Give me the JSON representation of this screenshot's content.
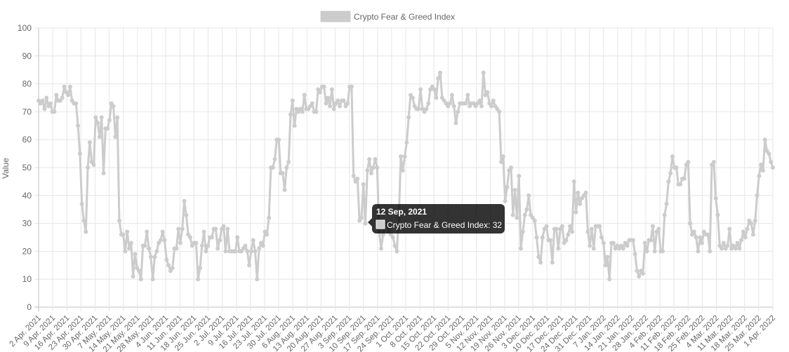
{
  "chart_data": {
    "type": "line",
    "legend": {
      "label": "Crypto Fear & Greed Index",
      "position": "top"
    },
    "ylabel": "Value",
    "ylim": [
      0,
      100
    ],
    "yticks": [
      0,
      10,
      20,
      30,
      40,
      50,
      60,
      70,
      80,
      90,
      100
    ],
    "grid": true,
    "series_color": "#cccccc",
    "xtick_labels": [
      "2 Apr. 2021",
      "9 Apr. 2021",
      "16 Apr. 2021",
      "23 Apr. 2021",
      "30 Apr. 2021",
      "7 May. 2021",
      "14 May. 2021",
      "21 May. 2021",
      "28 May. 2021",
      "4 Jun. 2021",
      "11 Jun. 2021",
      "18 Jun. 2021",
      "25 Jun. 2021",
      "2 Jul. 2021",
      "9 Jul. 2021",
      "16 Jul. 2021",
      "23 Jul. 2021",
      "30 Jul. 2021",
      "6 Aug. 2021",
      "13 Aug. 2021",
      "20 Aug. 2021",
      "27 Aug. 2021",
      "3 Sep. 2021",
      "10 Sep. 2021",
      "17 Sep. 2021",
      "24 Sep. 2021",
      "1 Oct. 2021",
      "8 Oct. 2021",
      "15 Oct. 2021",
      "22 Oct. 2021",
      "29 Oct. 2021",
      "5 Nov. 2021",
      "12 Nov. 2021",
      "19 Nov. 2021",
      "26 Nov. 2021",
      "3 Dec. 2021",
      "10 Dec. 2021",
      "17 Dec. 2021",
      "24 Dec. 2021",
      "31 Dec. 2021",
      "7 Jan. 2022",
      "14 Jan. 2022",
      "21 Jan. 2022",
      "28 Jan. 2022",
      "4 Feb. 2022",
      "11 Feb. 2022",
      "18 Feb. 2022",
      "25 Feb. 2022",
      "4 Mar. 2022",
      "11 Mar. 2022",
      "18 Mar. 2022",
      "25 Mar. 2022",
      "1 Apr. 2022"
    ],
    "series": [
      {
        "name": "Crypto Fear & Greed Index",
        "values": [
          74,
          73,
          74,
          71,
          75,
          72,
          73,
          70,
          70,
          76,
          74,
          74,
          75,
          79,
          77,
          76,
          79,
          74,
          73,
          73,
          65,
          55,
          37,
          31,
          27,
          50,
          59,
          52,
          51,
          68,
          66,
          61,
          68,
          48,
          64,
          64,
          67,
          73,
          72,
          61,
          68,
          31,
          26,
          26,
          20,
          27,
          21,
          23,
          11,
          19,
          14,
          13,
          10,
          22,
          22,
          27,
          21,
          18,
          10,
          18,
          20,
          23,
          24,
          27,
          24,
          17,
          15,
          13,
          14,
          21,
          21,
          28,
          23,
          28,
          38,
          33,
          26,
          25,
          22,
          23,
          23,
          10,
          14,
          22,
          27,
          20,
          22,
          25,
          25,
          28,
          28,
          21,
          24,
          28,
          29,
          20,
          28,
          20,
          20,
          20,
          20,
          25,
          20,
          20,
          21,
          22,
          20,
          15,
          20,
          24,
          20,
          10,
          21,
          23,
          22,
          27,
          26,
          32,
          50,
          50,
          53,
          60,
          60,
          48,
          48,
          42,
          50,
          52,
          69,
          74,
          65,
          71,
          70,
          71,
          70,
          76,
          71,
          71,
          72,
          73,
          70,
          70,
          78,
          77,
          79,
          79,
          73,
          75,
          72,
          78,
          71,
          73,
          74,
          72,
          74,
          74,
          72,
          73,
          79,
          79,
          47,
          45,
          46,
          31,
          32,
          44,
          30,
          49,
          53,
          48,
          50,
          53,
          50,
          27,
          21,
          26,
          30,
          30,
          27,
          26,
          25,
          22,
          20,
          32,
          54,
          49,
          54,
          59,
          68,
          76,
          75,
          72,
          71,
          71,
          78,
          71,
          70,
          71,
          73,
          78,
          79,
          78,
          75,
          82,
          84,
          75,
          74,
          73,
          72,
          73,
          76,
          72,
          66,
          70,
          73,
          73,
          73,
          73,
          76,
          72,
          73,
          73,
          72,
          73,
          74,
          72,
          84,
          76,
          77,
          73,
          72,
          74,
          72,
          71,
          70,
          52,
          54,
          38,
          43,
          49,
          50,
          33,
          42,
          32,
          47,
          21,
          27,
          33,
          35,
          40,
          33,
          32,
          31,
          25,
          18,
          16,
          25,
          28,
          29,
          24,
          24,
          16,
          28,
          28,
          21,
          28,
          29,
          23,
          24,
          26,
          29,
          27,
          45,
          34,
          41,
          37,
          39,
          40,
          41,
          27,
          22,
          28,
          21,
          29,
          29,
          29,
          25,
          23,
          15,
          18,
          10,
          23,
          23,
          21,
          22,
          21,
          22,
          21,
          23,
          22,
          24,
          24,
          24,
          19,
          13,
          11,
          13,
          12,
          23,
          20,
          24,
          24,
          29,
          20,
          27,
          28,
          20,
          20,
          33,
          37,
          45,
          48,
          54,
          50,
          50,
          44,
          44,
          46,
          46,
          51,
          52,
          30,
          26,
          27,
          25,
          20,
          25,
          23,
          27,
          26,
          26,
          20,
          51,
          52,
          39,
          33,
          22,
          21,
          23,
          21,
          22,
          28,
          21,
          22,
          21,
          23,
          21,
          24,
          27,
          25,
          28,
          31,
          30,
          26,
          31,
          40,
          47,
          51,
          49,
          60,
          56,
          55,
          52,
          50
        ]
      }
    ],
    "tooltip": {
      "title": "12 Sep, 2021",
      "body": "Crypto Fear & Greed Index: 32",
      "value": 32
    }
  }
}
